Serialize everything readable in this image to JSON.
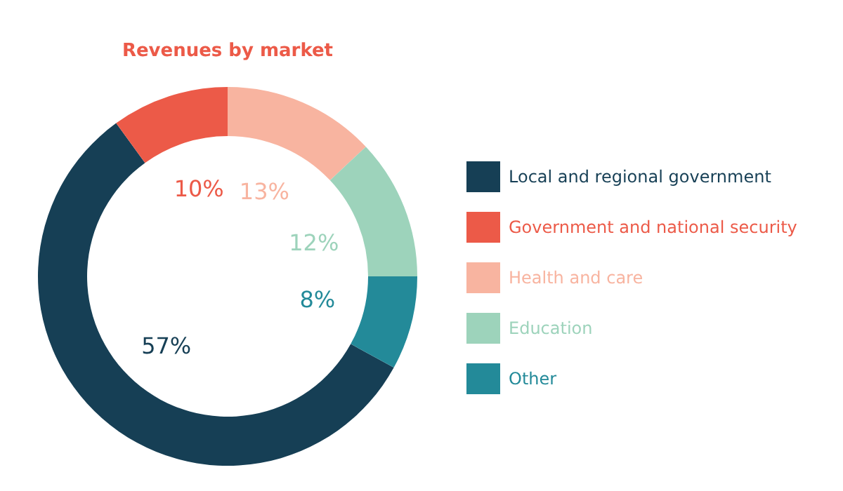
{
  "chart_data": {
    "type": "donut",
    "title": "Revenues by market",
    "categories": [
      "Local and regional government",
      "Government and national security",
      "Health and care",
      "Education",
      "Other"
    ],
    "values": [
      57,
      10,
      13,
      12,
      8
    ],
    "colors": [
      "#163f55",
      "#ec5a48",
      "#f8b4a0",
      "#9dd3bb",
      "#238a99"
    ],
    "value_labels": [
      "57%",
      "10%",
      "13%",
      "12%",
      "8%"
    ],
    "legend": "right"
  }
}
